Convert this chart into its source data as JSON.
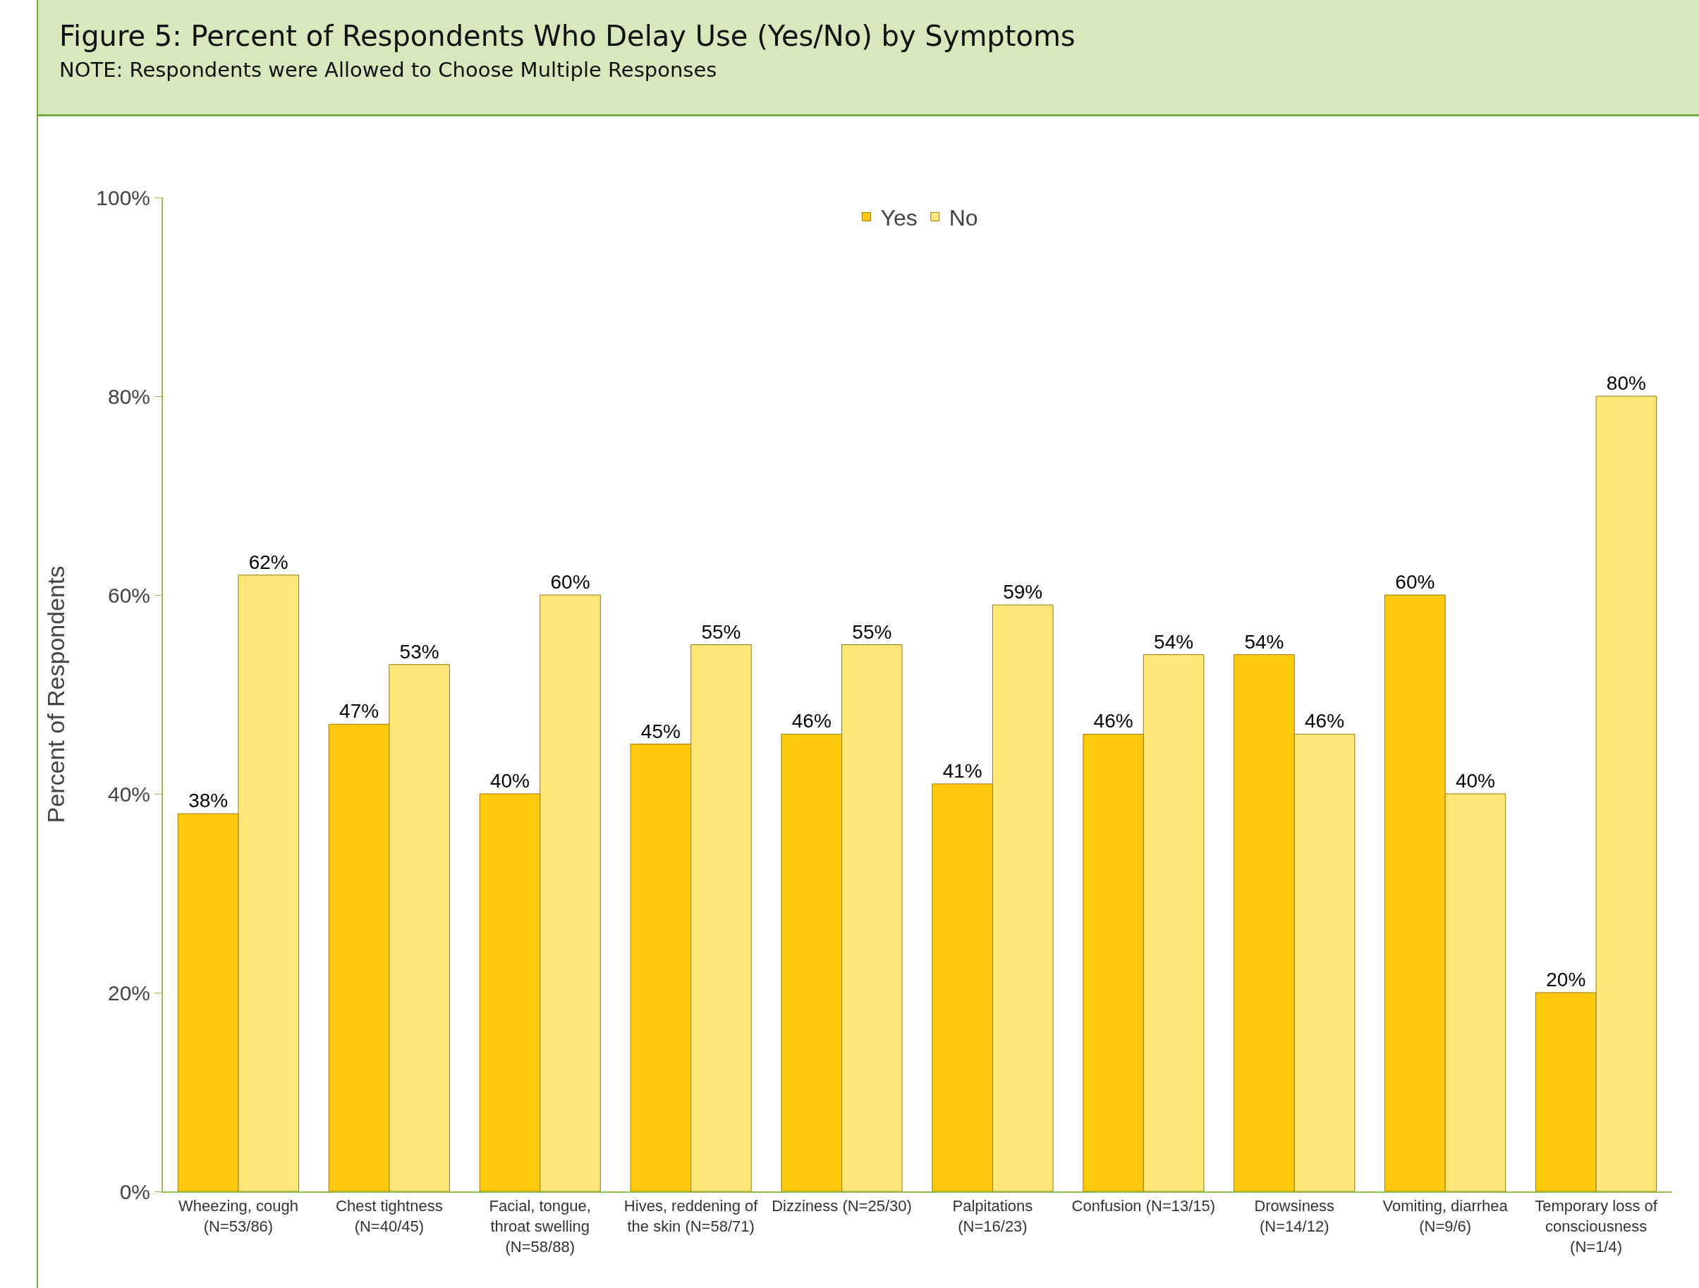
{
  "chart_data": {
    "type": "bar",
    "title": "Figure 5: Percent of Respondents Who Delay Use (Yes/No) by Symptoms",
    "subtitle": "NOTE: Respondents were Allowed to Choose Multiple Responses",
    "ylabel": "Percent of Respondents",
    "categories": [
      "Wheezing, cough (N=53/86)",
      "Chest tightness (N=40/45)",
      "Facial, tongue, throat swelling (N=58/88)",
      "Hives, reddening of the skin (N=58/71)",
      "Dizziness (N=25/30)",
      "Palpitations (N=16/23)",
      "Confusion (N=13/15)",
      "Drowsiness (N=14/12)",
      "Vomiting, diarrhea (N=9/6)",
      "Temporary loss of consciousness (N=1/4)"
    ],
    "series": [
      {
        "name": "Yes",
        "color": "#ffc90e",
        "values": [
          38,
          47,
          40,
          45,
          46,
          41,
          46,
          54,
          60,
          20
        ],
        "value_labels": [
          "38%",
          "47%",
          "40%",
          "45%",
          "46%",
          "41%",
          "46%",
          "54%",
          "60%",
          "20%"
        ]
      },
      {
        "name": "No",
        "color": "#ffe77a",
        "values": [
          62,
          53,
          60,
          55,
          55,
          59,
          54,
          46,
          40,
          80
        ],
        "value_labels": [
          "62%",
          "53%",
          "60%",
          "55%",
          "55%",
          "59%",
          "54%",
          "46%",
          "40%",
          "80%"
        ]
      }
    ],
    "ylim": [
      0,
      100
    ],
    "yticks": [
      {
        "value": 0,
        "label": "0%"
      },
      {
        "value": 20,
        "label": "20%"
      },
      {
        "value": 40,
        "label": "40%"
      },
      {
        "value": 60,
        "label": "60%"
      },
      {
        "value": 80,
        "label": "80%"
      },
      {
        "value": 100,
        "label": "100%"
      }
    ],
    "grid": false,
    "legend": "top"
  }
}
